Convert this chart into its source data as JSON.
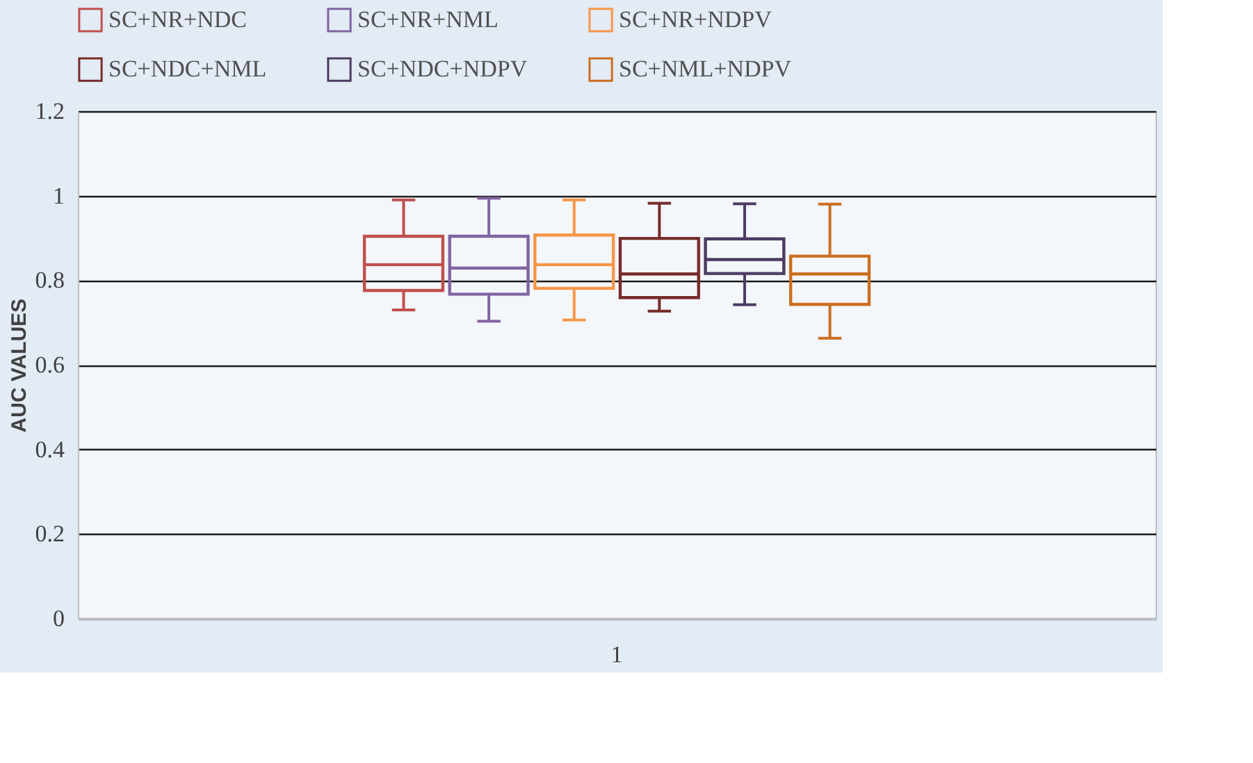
{
  "chart_data": {
    "type": "box",
    "ylabel": "AUC VALUES",
    "categories": [
      "1"
    ],
    "ylim": [
      0,
      1.2
    ],
    "yticks": [
      0,
      0.2,
      0.4,
      0.6,
      0.8,
      1,
      1.2
    ],
    "grid": "y",
    "legend": "top",
    "series": [
      {
        "name": "SC+NR+NDC",
        "color": "#c0504d",
        "boxes": [
          {
            "low": 0.73,
            "q1": 0.776,
            "median": 0.837,
            "q3": 0.904,
            "high": 0.99
          }
        ]
      },
      {
        "name": "SC+NR+NML",
        "color": "#8064a2",
        "boxes": [
          {
            "low": 0.703,
            "q1": 0.767,
            "median": 0.829,
            "q3": 0.904,
            "high": 0.994
          }
        ]
      },
      {
        "name": "SC+NR+NDPV",
        "color": "#f79646",
        "boxes": [
          {
            "low": 0.706,
            "q1": 0.781,
            "median": 0.837,
            "q3": 0.907,
            "high": 0.99
          }
        ]
      },
      {
        "name": "SC+NDC+NML",
        "color": "#772c2a",
        "boxes": [
          {
            "low": 0.727,
            "q1": 0.759,
            "median": 0.815,
            "q3": 0.899,
            "high": 0.982
          }
        ]
      },
      {
        "name": "SC+NDC+NDPV",
        "color": "#4d3b62",
        "boxes": [
          {
            "low": 0.742,
            "q1": 0.816,
            "median": 0.849,
            "q3": 0.898,
            "high": 0.981
          }
        ]
      },
      {
        "name": "SC+NML+NDPV",
        "color": "#cc6e1f",
        "boxes": [
          {
            "low": 0.663,
            "q1": 0.743,
            "median": 0.815,
            "q3": 0.857,
            "high": 0.98
          }
        ]
      }
    ]
  }
}
